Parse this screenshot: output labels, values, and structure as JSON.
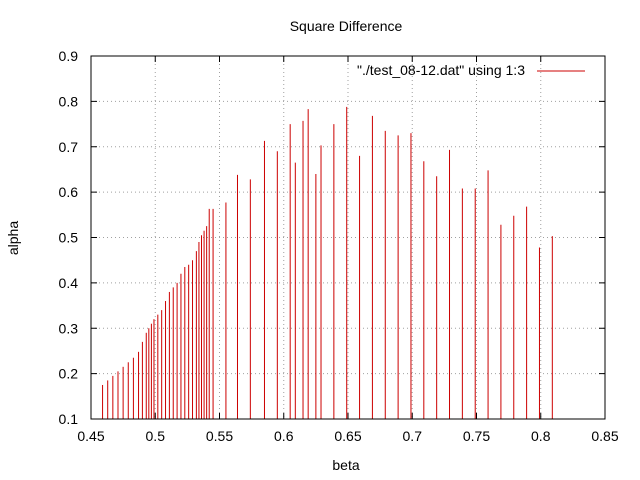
{
  "chart_data": {
    "type": "impulse",
    "title": "Square Difference",
    "xlabel": "beta",
    "ylabel": "alpha",
    "xlim": [
      0.45,
      0.85
    ],
    "ylim": [
      0.1,
      0.9
    ],
    "xticks": [
      "0.45",
      "0.5",
      "0.55",
      "0.6",
      "0.65",
      "0.7",
      "0.75",
      "0.8",
      "0.85"
    ],
    "yticks": [
      "0.1",
      "0.2",
      "0.3",
      "0.4",
      "0.5",
      "0.6",
      "0.7",
      "0.8",
      "0.9"
    ],
    "grid": true,
    "legend_position": "top-right",
    "series": [
      {
        "name": "\"./test_08-12.dat\" using 1:3",
        "color": "#cc0000",
        "points": [
          [
            0.459,
            0.175
          ],
          [
            0.463,
            0.185
          ],
          [
            0.467,
            0.195
          ],
          [
            0.471,
            0.205
          ],
          [
            0.475,
            0.215
          ],
          [
            0.479,
            0.225
          ],
          [
            0.483,
            0.235
          ],
          [
            0.487,
            0.248
          ],
          [
            0.49,
            0.27
          ],
          [
            0.493,
            0.29
          ],
          [
            0.495,
            0.3
          ],
          [
            0.497,
            0.31
          ],
          [
            0.499,
            0.32
          ],
          [
            0.502,
            0.33
          ],
          [
            0.505,
            0.34
          ],
          [
            0.508,
            0.36
          ],
          [
            0.511,
            0.38
          ],
          [
            0.514,
            0.39
          ],
          [
            0.517,
            0.4
          ],
          [
            0.52,
            0.42
          ],
          [
            0.523,
            0.435
          ],
          [
            0.526,
            0.44
          ],
          [
            0.529,
            0.45
          ],
          [
            0.532,
            0.47
          ],
          [
            0.534,
            0.49
          ],
          [
            0.536,
            0.505
          ],
          [
            0.538,
            0.515
          ],
          [
            0.54,
            0.525
          ],
          [
            0.542,
            0.563
          ],
          [
            0.545,
            0.563
          ],
          [
            0.555,
            0.577
          ],
          [
            0.564,
            0.638
          ],
          [
            0.574,
            0.628
          ],
          [
            0.585,
            0.713
          ],
          [
            0.595,
            0.69
          ],
          [
            0.605,
            0.75
          ],
          [
            0.609,
            0.665
          ],
          [
            0.615,
            0.757
          ],
          [
            0.619,
            0.783
          ],
          [
            0.625,
            0.64
          ],
          [
            0.629,
            0.703
          ],
          [
            0.639,
            0.75
          ],
          [
            0.649,
            0.788
          ],
          [
            0.659,
            0.68
          ],
          [
            0.669,
            0.768
          ],
          [
            0.679,
            0.735
          ],
          [
            0.689,
            0.725
          ],
          [
            0.699,
            0.73
          ],
          [
            0.709,
            0.668
          ],
          [
            0.719,
            0.635
          ],
          [
            0.729,
            0.693
          ],
          [
            0.739,
            0.608
          ],
          [
            0.749,
            0.608
          ],
          [
            0.759,
            0.648
          ],
          [
            0.769,
            0.528
          ],
          [
            0.779,
            0.548
          ],
          [
            0.789,
            0.568
          ],
          [
            0.799,
            0.478
          ],
          [
            0.809,
            0.503
          ]
        ]
      }
    ]
  }
}
